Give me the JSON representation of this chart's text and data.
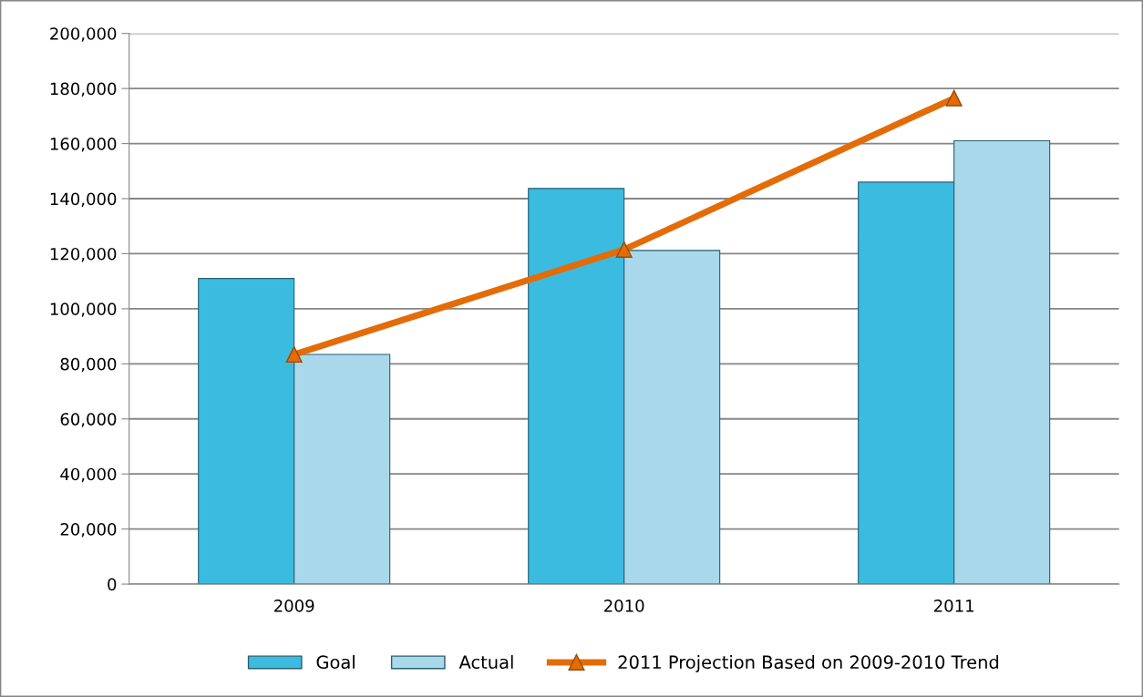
{
  "chart_data": {
    "type": "bar",
    "categories": [
      "2009",
      "2010",
      "2011"
    ],
    "series": [
      {
        "name": "Goal",
        "color": "#3bbbe0",
        "values": [
          111000,
          143700,
          146000
        ]
      },
      {
        "name": "Actual",
        "color": "#a8d8ea",
        "values": [
          83400,
          121200,
          161000
        ]
      },
      {
        "name": "2011 Projection Based on 2009-2010 Trend",
        "type": "line",
        "color": "#e36c09",
        "values": [
          83400,
          121500,
          176500
        ],
        "marker": "triangle"
      }
    ],
    "ylim": [
      0,
      200000
    ],
    "yticks": [
      {
        "value": 0,
        "label": "0"
      },
      {
        "value": 20000,
        "label": "20,000"
      },
      {
        "value": 40000,
        "label": "40,000"
      },
      {
        "value": 60000,
        "label": "60,000"
      },
      {
        "value": 80000,
        "label": "80,000"
      },
      {
        "value": 100000,
        "label": "100,000"
      },
      {
        "value": 120000,
        "label": "120,000"
      },
      {
        "value": 140000,
        "label": "140,000"
      },
      {
        "value": 160000,
        "label": "160,000"
      },
      {
        "value": 180000,
        "label": "180,000"
      },
      {
        "value": 200000,
        "label": "200,000"
      }
    ],
    "grid": "y",
    "legend": "bottom"
  }
}
